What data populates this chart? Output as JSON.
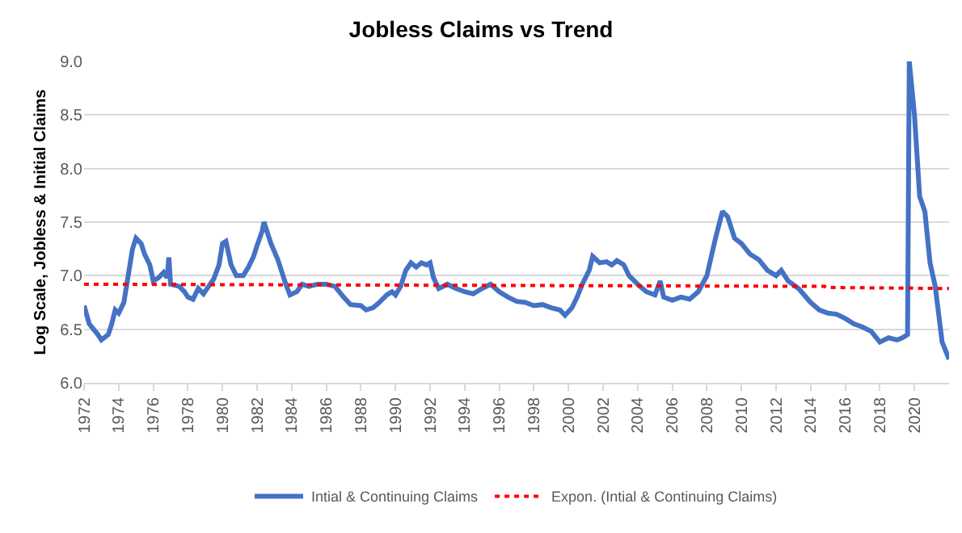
{
  "chart_data": {
    "type": "line",
    "title": "Jobless Claims vs Trend",
    "ylabel": "Log Scale, Jobless & Initial Claims",
    "xlim": [
      1972,
      2022
    ],
    "xticks": [
      1972,
      1974,
      1976,
      1978,
      1980,
      1982,
      1984,
      1986,
      1988,
      1990,
      1992,
      1994,
      1996,
      1998,
      2000,
      2002,
      2004,
      2006,
      2008,
      2010,
      2012,
      2014,
      2016,
      2018,
      2020
    ],
    "ylim": [
      6,
      9
    ],
    "yticks": [
      {
        "value": 6,
        "label": "6.0"
      },
      {
        "value": 6.5,
        "label": "6.5"
      },
      {
        "value": 7,
        "label": "7.0"
      },
      {
        "value": 7.5,
        "label": "7.5"
      },
      {
        "value": 8,
        "label": "8.0"
      },
      {
        "value": 8.5,
        "label": "8.5"
      },
      {
        "value": 9,
        "label": "9.0"
      }
    ],
    "grid": "y",
    "legend": "bottom",
    "marker": "none",
    "series": [
      {
        "name": "Intial & Continuing Claims",
        "color": "#4472c4",
        "line_style": "solid",
        "x": [
          1972.0,
          1972.3,
          1972.8,
          1973.0,
          1973.4,
          1973.6,
          1973.8,
          1974.0,
          1974.3,
          1974.6,
          1974.8,
          1975.0,
          1975.3,
          1975.5,
          1975.8,
          1976.0,
          1976.3,
          1976.6,
          1976.8,
          1976.9,
          1977.0,
          1977.5,
          1977.8,
          1978.0,
          1978.3,
          1978.6,
          1978.9,
          1979.2,
          1979.5,
          1979.8,
          1980.0,
          1980.2,
          1980.5,
          1980.8,
          1981.2,
          1981.5,
          1981.8,
          1982.0,
          1982.3,
          1982.4,
          1982.6,
          1982.8,
          1983.2,
          1983.6,
          1983.9,
          1984.3,
          1984.6,
          1985.0,
          1985.5,
          1986.0,
          1986.5,
          1987.0,
          1987.4,
          1988.0,
          1988.3,
          1988.7,
          1989.0,
          1989.5,
          1989.8,
          1990.0,
          1990.3,
          1990.6,
          1990.9,
          1991.2,
          1991.5,
          1991.8,
          1992.0,
          1992.2,
          1992.5,
          1993.0,
          1993.5,
          1994.0,
          1994.5,
          1995.0,
          1995.5,
          1996.0,
          1996.5,
          1997.0,
          1997.5,
          1998.0,
          1998.5,
          1999.0,
          1999.5,
          1999.8,
          2000.2,
          2000.5,
          2000.8,
          2001.2,
          2001.4,
          2001.8,
          2002.2,
          2002.5,
          2002.8,
          2003.2,
          2003.5,
          2004.0,
          2004.5,
          2005.0,
          2005.3,
          2005.5,
          2006.0,
          2006.5,
          2007.0,
          2007.5,
          2008.0,
          2008.5,
          2008.9,
          2009.2,
          2009.6,
          2010.0,
          2010.5,
          2011.0,
          2011.5,
          2012.0,
          2012.3,
          2012.7,
          2013.3,
          2014.0,
          2014.5,
          2015.0,
          2015.5,
          2016.0,
          2016.5,
          2017.0,
          2017.5,
          2018.0,
          2018.5,
          2019.0,
          2019.3,
          2019.6,
          2019.7,
          2020.0,
          2020.3,
          2020.6,
          2020.9,
          2021.2,
          2021.6,
          2022.0
        ],
        "values": [
          6.72,
          6.55,
          6.45,
          6.4,
          6.45,
          6.55,
          6.68,
          6.65,
          6.75,
          7.05,
          7.25,
          7.35,
          7.3,
          7.2,
          7.1,
          6.95,
          6.98,
          7.03,
          6.98,
          7.17,
          6.92,
          6.9,
          6.85,
          6.8,
          6.78,
          6.88,
          6.83,
          6.9,
          6.97,
          7.1,
          7.3,
          7.32,
          7.1,
          7.0,
          7.0,
          7.08,
          7.18,
          7.28,
          7.42,
          7.5,
          7.4,
          7.3,
          7.15,
          6.95,
          6.82,
          6.85,
          6.92,
          6.9,
          6.92,
          6.92,
          6.9,
          6.8,
          6.73,
          6.72,
          6.68,
          6.7,
          6.74,
          6.82,
          6.85,
          6.82,
          6.9,
          7.05,
          7.12,
          7.08,
          7.12,
          7.1,
          7.12,
          6.98,
          6.88,
          6.92,
          6.88,
          6.85,
          6.83,
          6.88,
          6.92,
          6.85,
          6.8,
          6.76,
          6.75,
          6.72,
          6.73,
          6.7,
          6.68,
          6.63,
          6.7,
          6.8,
          6.92,
          7.05,
          7.18,
          7.12,
          7.13,
          7.1,
          7.14,
          7.1,
          7.0,
          6.92,
          6.85,
          6.82,
          6.95,
          6.8,
          6.77,
          6.8,
          6.78,
          6.85,
          7.0,
          7.35,
          7.6,
          7.55,
          7.35,
          7.3,
          7.2,
          7.15,
          7.05,
          7.0,
          7.05,
          6.95,
          6.88,
          6.75,
          6.68,
          6.65,
          6.64,
          6.6,
          6.55,
          6.52,
          6.48,
          6.38,
          6.42,
          6.4,
          6.42,
          6.45,
          9.0,
          8.5,
          7.74,
          7.6,
          7.12,
          6.9,
          6.38,
          6.22
        ]
      },
      {
        "name": "Expon. (Intial & Continuing Claims)",
        "color": "#ff0000",
        "line_style": "dotted",
        "x": [
          1972,
          2014.8,
          2014.9,
          2022
        ],
        "values": [
          6.92,
          6.9,
          6.89,
          6.88
        ]
      }
    ]
  }
}
